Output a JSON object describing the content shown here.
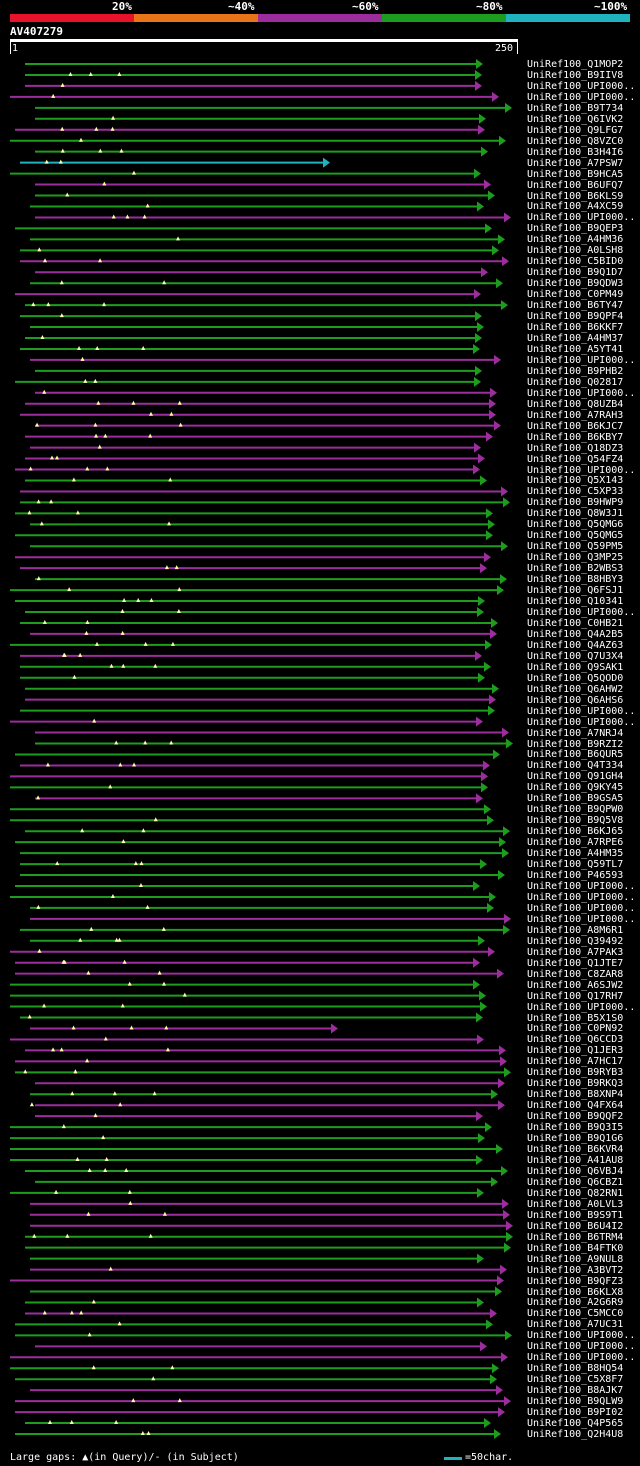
{
  "identity_legend": [
    {
      "label": "20%",
      "color": "#e8132b"
    },
    {
      "label": "~40%",
      "color": "#e8751a"
    },
    {
      "label": "~60%",
      "color": "#9c2d9c"
    },
    {
      "label": "~80%",
      "color": "#1e9c1e"
    },
    {
      "label": "~100%",
      "color": "#1fb3bf"
    }
  ],
  "query": {
    "name": "AV407279",
    "start": "1",
    "end": "250"
  },
  "hits": [
    "UniRef100_Q1MOP2",
    "UniRef100_B9IIV8",
    "UniRef100_UPI000..",
    "UniRef100_UPI000..",
    "UniRef100_B9T734",
    "UniRef100_Q6IVK2",
    "UniRef100_Q9LFG7",
    "UniRef100_Q8VZC0",
    "UniRef100_B3H4I6",
    "UniRef100_A7PSW7",
    "UniRef100_B9HCA5",
    "UniRef100_B6UFQ7",
    "UniRef100_B6KLS9",
    "UniRef100_A4XC59",
    "UniRef100_UPI000..",
    "UniRef100_B9QEP3",
    "UniRef100_A4HM36",
    "UniRef100_A0LSH8",
    "UniRef100_C5BID0",
    "UniRef100_B9Q1D7",
    "UniRef100_B9QDW3",
    "UniRef100_C0PM49",
    "UniRef100_B6TY47",
    "UniRef100_B9QPF4",
    "UniRef100_B6KKF7",
    "UniRef100_A4HM37",
    "UniRef100_A5YT41",
    "UniRef100_UPI000..",
    "UniRef100_B9PHB2",
    "UniRef100_Q02817",
    "UniRef100_UPI000..",
    "UniRef100_Q8UZB4",
    "UniRef100_A7RAH3",
    "UniRef100_B6KJC7",
    "UniRef100_B6KBY7",
    "UniRef100_Q18DZ3",
    "UniRef100_Q54FZ4",
    "UniRef100_UPI000..",
    "UniRef100_Q5X143",
    "UniRef100_C5XP33",
    "UniRef100_B9HWP9",
    "UniRef100_Q8W3J1",
    "UniRef100_Q5QMG6",
    "UniRef100_Q5QMG5",
    "UniRef100_Q59PM5",
    "UniRef100_Q3MP25",
    "UniRef100_B2WBS3",
    "UniRef100_B8HBY3",
    "UniRef100_Q6FSJ1",
    "UniRef100_Q10341",
    "UniRef100_UPI000..",
    "UniRef100_C0HB21",
    "UniRef100_Q4A2B5",
    "UniRef100_Q4AZ63",
    "UniRef100_Q7U3X4",
    "UniRef100_Q9SAK1",
    "UniRef100_Q5QOD0",
    "UniRef100_Q6AHW2",
    "UniRef100_Q6AHS6",
    "UniRef100_UPI000..",
    "UniRef100_UPI000..",
    "UniRef100_A7NRJ4",
    "UniRef100_B9RZI2",
    "UniRef100_B6QUR5",
    "UniRef100_Q4T334",
    "UniRef100_Q91GH4",
    "UniRef100_Q9KY45",
    "UniRef100_B9GSA5",
    "UniRef100_B9QPW0",
    "UniRef100_B9Q5V8",
    "UniRef100_B6KJ65",
    "UniRef100_A7RPE6",
    "UniRef100_A4HM35",
    "UniRef100_Q59TL7",
    "UniRef100_P46593",
    "UniRef100_UPI000..",
    "UniRef100_UPI000..",
    "UniRef100_UPI000..",
    "UniRef100_UPI000..",
    "UniRef100_A8M6R1",
    "UniRef100_Q39492",
    "UniRef100_A7PAK3",
    "UniRef100_Q1JTE7",
    "UniRef100_C8ZAR8",
    "UniRef100_A6SJW2",
    "UniRef100_Q17RH7",
    "UniRef100_UPI000..",
    "UniRef100_B5X1S0",
    "UniRef100_C0PN92",
    "UniRef100_Q6CCD3",
    "UniRef100_Q1JER3",
    "UniRef100_A7HC17",
    "UniRef100_B9RYB3",
    "UniRef100_B9RKQ3",
    "UniRef100_B8XNP4",
    "UniRef100_Q4FX64",
    "UniRef100_B9QQF2",
    "UniRef100_B9Q3I5",
    "UniRef100_B9Q1G6",
    "UniRef100_B6KVR4",
    "UniRef100_A41AU8",
    "UniRef100_Q6VBJ4",
    "UniRef100_Q6CBZ1",
    "UniRef100_Q82RN1",
    "UniRef100_A0LVL3",
    "UniRef100_B9S9T1",
    "UniRef100_B6U4I2",
    "UniRef100_B6TRM4",
    "UniRef100_B4FTK0",
    "UniRef100_A9NUL8",
    "UniRef100_A3BVT2",
    "UniRef100_B9QFZ3",
    "UniRef100_B6KLX8",
    "UniRef100_A2G6R9",
    "UniRef100_C5MCC0",
    "UniRef100_A7UC31",
    "UniRef100_UPI000..",
    "UniRef100_UPI000..",
    "UniRef100_UPI000..",
    "UniRef100_B8HQ54",
    "UniRef100_C5X8F7",
    "UniRef100_B8AJK7",
    "UniRef100_B9QLW9",
    "UniRef100_B9PI02",
    "UniRef100_Q4P565",
    "UniRef100_Q2H4U8"
  ],
  "footer": {
    "gaps_legend": "Large gaps: ▲(in Query)/- (in Subject)",
    "scale_legend": "=50char."
  }
}
